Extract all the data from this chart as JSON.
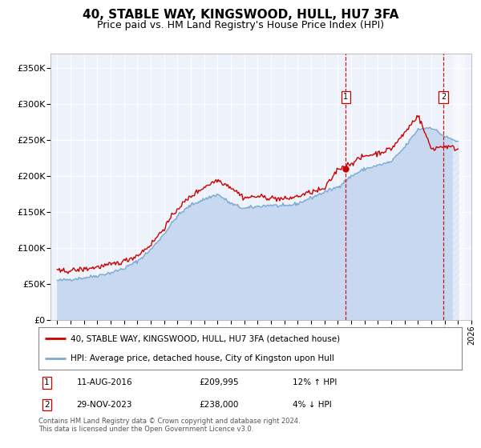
{
  "title": "40, STABLE WAY, KINGSWOOD, HULL, HU7 3FA",
  "subtitle": "Price paid vs. HM Land Registry's House Price Index (HPI)",
  "title_fontsize": 11,
  "subtitle_fontsize": 9,
  "ylim": [
    0,
    370000
  ],
  "yticks": [
    0,
    50000,
    100000,
    150000,
    200000,
    250000,
    300000,
    350000
  ],
  "ytick_labels": [
    "£0",
    "£50K",
    "£100K",
    "£150K",
    "£200K",
    "£250K",
    "£300K",
    "£350K"
  ],
  "background_color": "#ffffff",
  "plot_bg_color": "#eef2fa",
  "grid_color": "#ffffff",
  "line1_color": "#cc0000",
  "line2_color": "#7aaad0",
  "line2_fill_color": "#c8d8f0",
  "annotation1_label": "1",
  "annotation2_label": "2",
  "annotation1_date": "11-AUG-2016",
  "annotation1_price": "£209,995",
  "annotation1_hpi": "12% ↑ HPI",
  "annotation2_date": "29-NOV-2023",
  "annotation2_price": "£238,000",
  "annotation2_hpi": "4% ↓ HPI",
  "legend_line1": "40, STABLE WAY, KINGSWOOD, HULL, HU7 3FA (detached house)",
  "legend_line2": "HPI: Average price, detached house, City of Kingston upon Hull",
  "footer": "Contains HM Land Registry data © Crown copyright and database right 2024.\nThis data is licensed under the Open Government Licence v3.0.",
  "hpi_values": [
    55000,
    57000,
    59000,
    62000,
    66000,
    72000,
    82000,
    98000,
    120000,
    145000,
    160000,
    168000,
    175000,
    162000,
    155000,
    158000,
    160000,
    158000,
    162000,
    170000,
    178000,
    185000,
    200000,
    210000,
    215000,
    220000,
    240000,
    265000,
    268000,
    255000,
    248000
  ],
  "price_values": [
    68000,
    69000,
    71000,
    74000,
    77000,
    82000,
    90000,
    105000,
    128000,
    155000,
    172000,
    185000,
    195000,
    185000,
    170000,
    172000,
    170000,
    168000,
    172000,
    178000,
    182000,
    209995,
    218000,
    228000,
    232000,
    238000,
    260000,
    285000,
    238000,
    242000,
    238000
  ],
  "marker1_x": 2016.6,
  "marker2_x": 2023.9,
  "marker1_y": 209995,
  "hatch_start": 2024.6,
  "x_start": 1995,
  "x_end": 2025,
  "xtick_start": 1995,
  "xtick_end": 2026
}
